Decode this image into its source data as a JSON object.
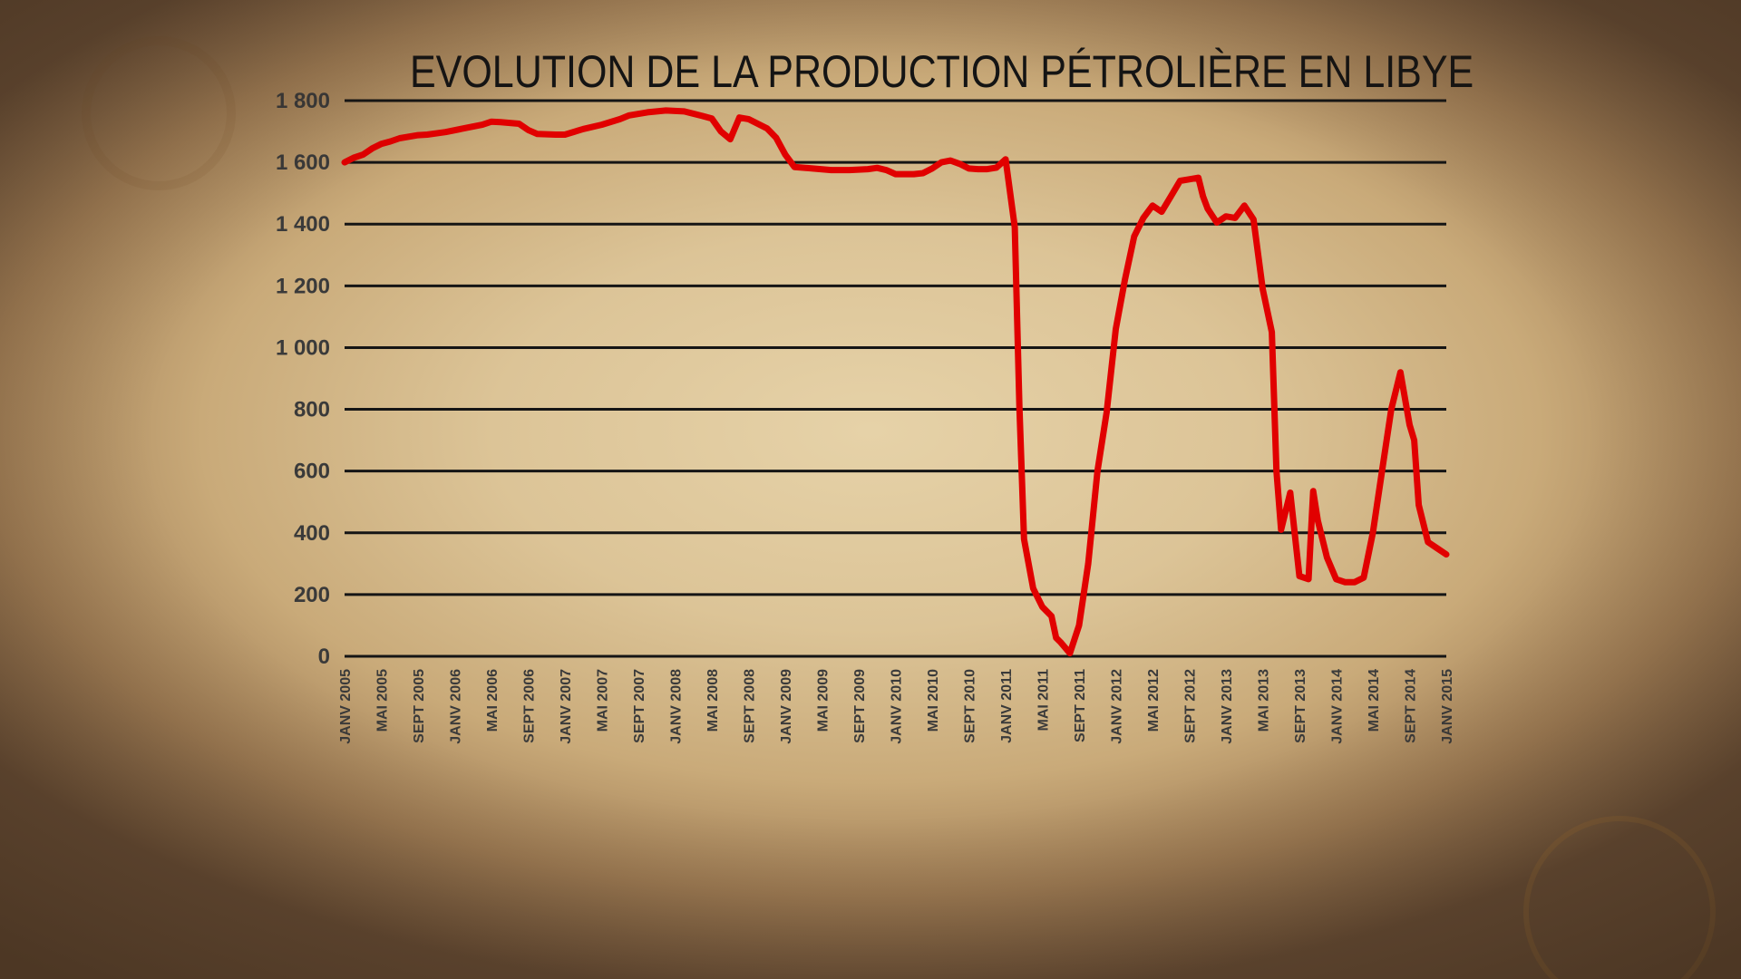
{
  "chart_data": {
    "type": "line",
    "title": "EVOLUTION DE LA PRODUCTION PÉTROLIÈRE EN LIBYE",
    "xlabel": "",
    "ylabel": "",
    "ylim": [
      0,
      1800
    ],
    "yticks": [
      0,
      200,
      400,
      600,
      800,
      1000,
      1200,
      1400,
      1600,
      1800
    ],
    "ytick_labels": [
      "0",
      "200",
      "400",
      "600",
      "800",
      "1 000",
      "1 200",
      "1 400",
      "1 600",
      "1 800"
    ],
    "xlim": [
      0,
      120
    ],
    "xtick_labels": [
      "JANV 2005",
      "MAI 2005",
      "SEPT 2005",
      "JANV 2006",
      "MAI 2006",
      "SEPT 2006",
      "JANV 2007",
      "MAI 2007",
      "SEPT 2007",
      "JANV 2008",
      "MAI 2008",
      "SEPT 2008",
      "JANV 2009",
      "MAI 2009",
      "SEPT 2009",
      "JANV 2010",
      "MAI 2010",
      "SEPT 2010",
      "JANV 2011",
      "MAI 2011",
      "SEPT 2011",
      "JANV 2012",
      "MAI 2012",
      "SEPT 2012",
      "JANV 2013",
      "MAI 2013",
      "SEPT 2013",
      "JANV 2014",
      "MAI 2014",
      "SEPT 2014",
      "JANV 2015"
    ],
    "grid": true,
    "series": [
      {
        "color": "#e10000",
        "points": [
          [
            0,
            1600
          ],
          [
            1,
            1615
          ],
          [
            2,
            1625
          ],
          [
            3,
            1645
          ],
          [
            4,
            1660
          ],
          [
            5,
            1668
          ],
          [
            6,
            1678
          ],
          [
            8,
            1688
          ],
          [
            9,
            1690
          ],
          [
            11,
            1698
          ],
          [
            13,
            1710
          ],
          [
            15,
            1722
          ],
          [
            16,
            1732
          ],
          [
            17,
            1730
          ],
          [
            19,
            1725
          ],
          [
            20,
            1705
          ],
          [
            21,
            1692
          ],
          [
            23,
            1690
          ],
          [
            24,
            1690
          ],
          [
            26,
            1708
          ],
          [
            28,
            1722
          ],
          [
            30,
            1740
          ],
          [
            31,
            1752
          ],
          [
            33,
            1762
          ],
          [
            35,
            1768
          ],
          [
            37,
            1765
          ],
          [
            39,
            1750
          ],
          [
            40,
            1742
          ],
          [
            41,
            1700
          ],
          [
            42,
            1675
          ],
          [
            43,
            1745
          ],
          [
            44,
            1740
          ],
          [
            46,
            1710
          ],
          [
            47,
            1680
          ],
          [
            48,
            1625
          ],
          [
            49,
            1585
          ],
          [
            51,
            1580
          ],
          [
            53,
            1575
          ],
          [
            55,
            1575
          ],
          [
            57,
            1578
          ],
          [
            58,
            1582
          ],
          [
            59,
            1575
          ],
          [
            60,
            1562
          ],
          [
            62,
            1562
          ],
          [
            63,
            1565
          ],
          [
            64,
            1580
          ],
          [
            65,
            1600
          ],
          [
            66,
            1606
          ],
          [
            67,
            1595
          ],
          [
            68,
            1580
          ],
          [
            69,
            1578
          ],
          [
            70,
            1578
          ],
          [
            71,
            1583
          ],
          [
            72,
            1610
          ],
          [
            73,
            1390
          ],
          [
            73.5,
            810
          ],
          [
            74,
            380
          ],
          [
            75,
            220
          ],
          [
            76,
            160
          ],
          [
            77,
            130
          ],
          [
            77.5,
            60
          ],
          [
            78,
            45
          ],
          [
            79,
            10
          ],
          [
            80,
            100
          ],
          [
            81,
            300
          ],
          [
            82,
            600
          ],
          [
            83,
            790
          ],
          [
            84,
            1060
          ],
          [
            85,
            1220
          ],
          [
            86,
            1360
          ],
          [
            87,
            1420
          ],
          [
            88,
            1460
          ],
          [
            89,
            1440
          ],
          [
            90,
            1490
          ],
          [
            91,
            1540
          ],
          [
            92,
            1545
          ],
          [
            93,
            1550
          ],
          [
            93.5,
            1490
          ],
          [
            94,
            1450
          ],
          [
            95,
            1405
          ],
          [
            96,
            1425
          ],
          [
            97,
            1420
          ],
          [
            98,
            1460
          ],
          [
            99,
            1415
          ],
          [
            100,
            1190
          ],
          [
            101,
            1050
          ],
          [
            101.5,
            600
          ],
          [
            102,
            410
          ],
          [
            103,
            530
          ],
          [
            104,
            260
          ],
          [
            105,
            250
          ],
          [
            105.5,
            535
          ],
          [
            106,
            440
          ],
          [
            107,
            320
          ],
          [
            108,
            250
          ],
          [
            109,
            240
          ],
          [
            110,
            240
          ],
          [
            111,
            255
          ],
          [
            112,
            400
          ],
          [
            113,
            600
          ],
          [
            114,
            800
          ],
          [
            115,
            920
          ],
          [
            116,
            750
          ],
          [
            116.5,
            700
          ],
          [
            117,
            490
          ],
          [
            118,
            370
          ],
          [
            119,
            350
          ],
          [
            120,
            330
          ]
        ]
      }
    ]
  }
}
